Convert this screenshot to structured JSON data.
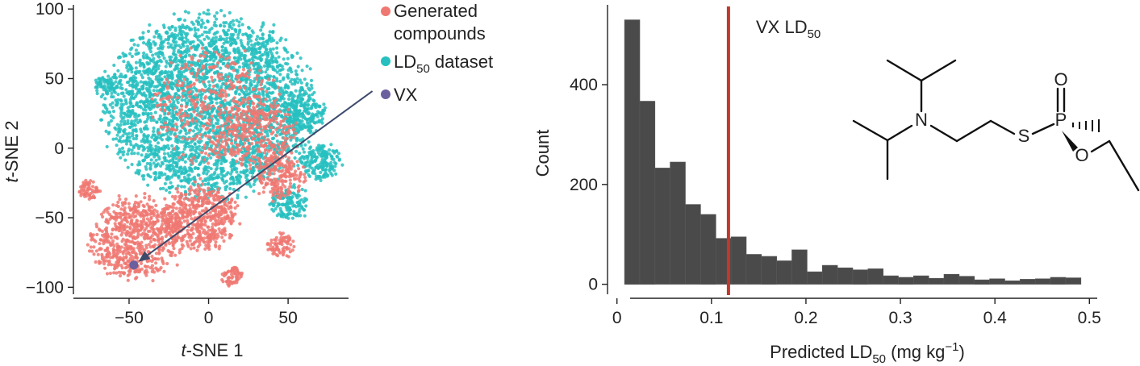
{
  "chart_data": [
    {
      "type": "scatter",
      "xlabel_italic": "t",
      "xlabel_rest": "-SNE 1",
      "ylabel_italic": "t",
      "ylabel_rest": "-SNE 2",
      "xlim": [
        -85,
        88
      ],
      "ylim": [
        -105,
        103
      ],
      "xticks": [
        -50,
        0,
        50
      ],
      "yticks": [
        -100,
        -50,
        0,
        50,
        100
      ],
      "xtick_labels": [
        "−50",
        "0",
        "50"
      ],
      "ytick_labels": [
        "−100",
        "−50",
        "0",
        "50",
        "100"
      ],
      "legend_placement": "top-right outside",
      "series": [
        {
          "legend_line1": "Generated",
          "legend_line2": "compounds",
          "color": "#f07872",
          "clusters": [
            {
              "cx": -45,
              "cy": -65,
              "r": 28,
              "n": 700
            },
            {
              "cx": -75,
              "cy": -30,
              "r": 6,
              "n": 60
            },
            {
              "cx": -5,
              "cy": -50,
              "r": 22,
              "n": 500
            },
            {
              "cx": 15,
              "cy": -92,
              "r": 6,
              "n": 60
            },
            {
              "cx": 45,
              "cy": -70,
              "r": 8,
              "n": 80
            },
            {
              "cx": 45,
              "cy": -20,
              "r": 15,
              "n": 200
            },
            {
              "cx": 5,
              "cy": 30,
              "r": 40,
              "n": 400
            },
            {
              "cx": 30,
              "cy": 10,
              "r": 25,
              "n": 250
            }
          ]
        },
        {
          "legend_line1": "LD",
          "legend_sub": "50",
          "legend_line2": " dataset",
          "color": "#27bfbf",
          "clusters": [
            {
              "cx": 0,
              "cy": 30,
              "r": 62,
              "n": 3200
            },
            {
              "cx": -65,
              "cy": 45,
              "r": 6,
              "n": 60
            },
            {
              "cx": 60,
              "cy": 25,
              "r": 12,
              "n": 160
            },
            {
              "cx": 70,
              "cy": -10,
              "r": 12,
              "n": 180
            },
            {
              "cx": 50,
              "cy": -40,
              "r": 12,
              "n": 140
            }
          ]
        },
        {
          "legend_line1": "VX",
          "color": "#6b5f9e",
          "points": [
            {
              "x": -47,
              "y": -84
            }
          ]
        }
      ],
      "annotation": {
        "type": "arrow",
        "from": [
          103,
          41
        ],
        "to": [
          -47,
          -84
        ],
        "color": "#3d4a6b"
      }
    },
    {
      "type": "bar",
      "xlabel": "Predicted LD",
      "xlabel_sub": "50",
      "xlabel_unit": " (mg kg",
      "xlabel_sup": "−1",
      "xlabel_close": ")",
      "ylabel": "Count",
      "xlim": [
        -0.01,
        0.51
      ],
      "ylim": [
        -20,
        560
      ],
      "xticks": [
        0,
        0.1,
        0.2,
        0.3,
        0.4,
        0.5
      ],
      "xtick_labels": [
        "0",
        "0.1",
        "0.2",
        "0.3",
        "0.4",
        "0.5"
      ],
      "yticks": [
        0,
        200,
        400
      ],
      "ytick_labels": [
        "0",
        "200",
        "400"
      ],
      "bin_start": 0.008,
      "bin_width": 0.0161,
      "values": [
        530,
        367,
        233,
        245,
        160,
        140,
        92,
        95,
        60,
        56,
        47,
        69,
        25,
        38,
        33,
        29,
        31,
        17,
        14,
        17,
        12,
        20,
        16,
        9,
        11,
        7,
        10,
        11,
        14,
        13
      ],
      "color": "#4a4a4a",
      "reference_line": {
        "x": 0.118,
        "color": "#c0392b",
        "label": "VX LD",
        "label_sub": "50"
      },
      "molecule_atoms": {
        "N": "N",
        "S": "S",
        "P": "P",
        "O_top": "O",
        "O_right": "O"
      }
    }
  ]
}
